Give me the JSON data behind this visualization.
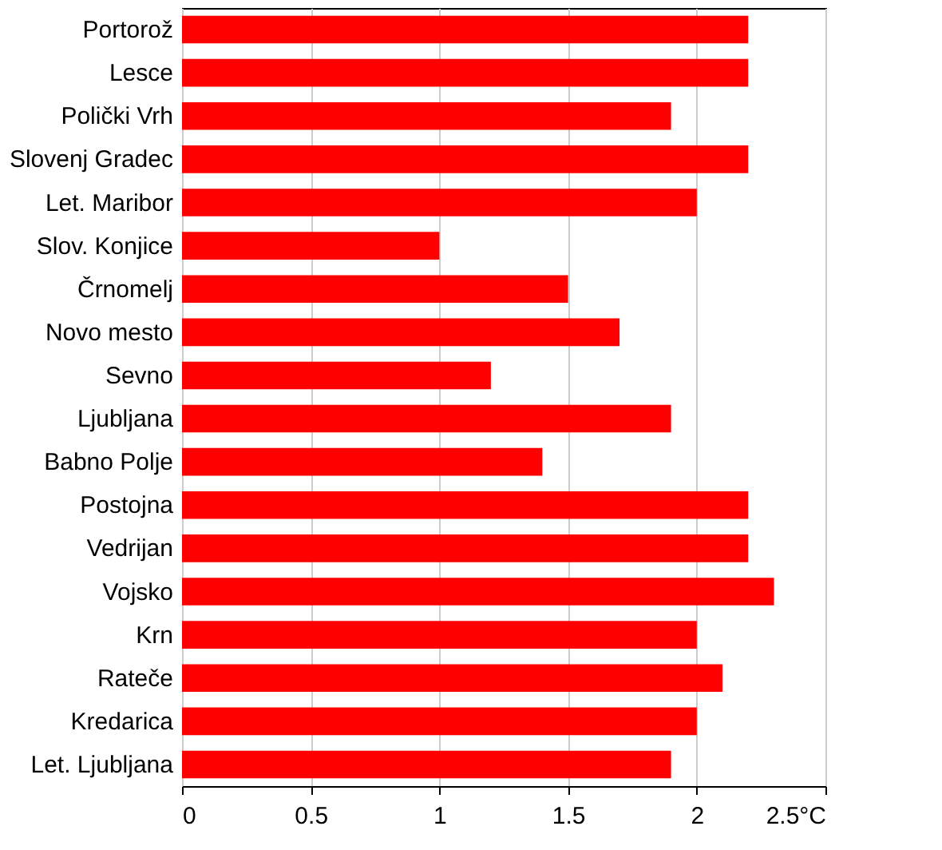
{
  "chart_data": {
    "type": "bar",
    "orientation": "horizontal",
    "categories": [
      "Portorož",
      "Lesce",
      "Polički Vrh",
      "Slovenj Gradec",
      "Let. Maribor",
      "Slov. Konjice",
      "Črnomelj",
      "Novo mesto",
      "Sevno",
      "Ljubljana",
      "Babno Polje",
      "Postojna",
      "Vedrijan",
      "Vojsko",
      "Krn",
      "Rateče",
      "Kredarica",
      "Let. Ljubljana"
    ],
    "values": [
      2.2,
      2.2,
      1.9,
      2.2,
      2.0,
      1.0,
      1.5,
      1.7,
      1.2,
      1.9,
      1.4,
      2.2,
      2.2,
      2.3,
      2.0,
      2.1,
      2.0,
      1.9
    ],
    "color": "#ff0000",
    "xlim": [
      0,
      2.5
    ],
    "xticks": [
      0,
      0.5,
      1,
      1.5,
      2,
      {
        "value": 2.5,
        "label": "2.5°C"
      }
    ],
    "grid": "x"
  }
}
